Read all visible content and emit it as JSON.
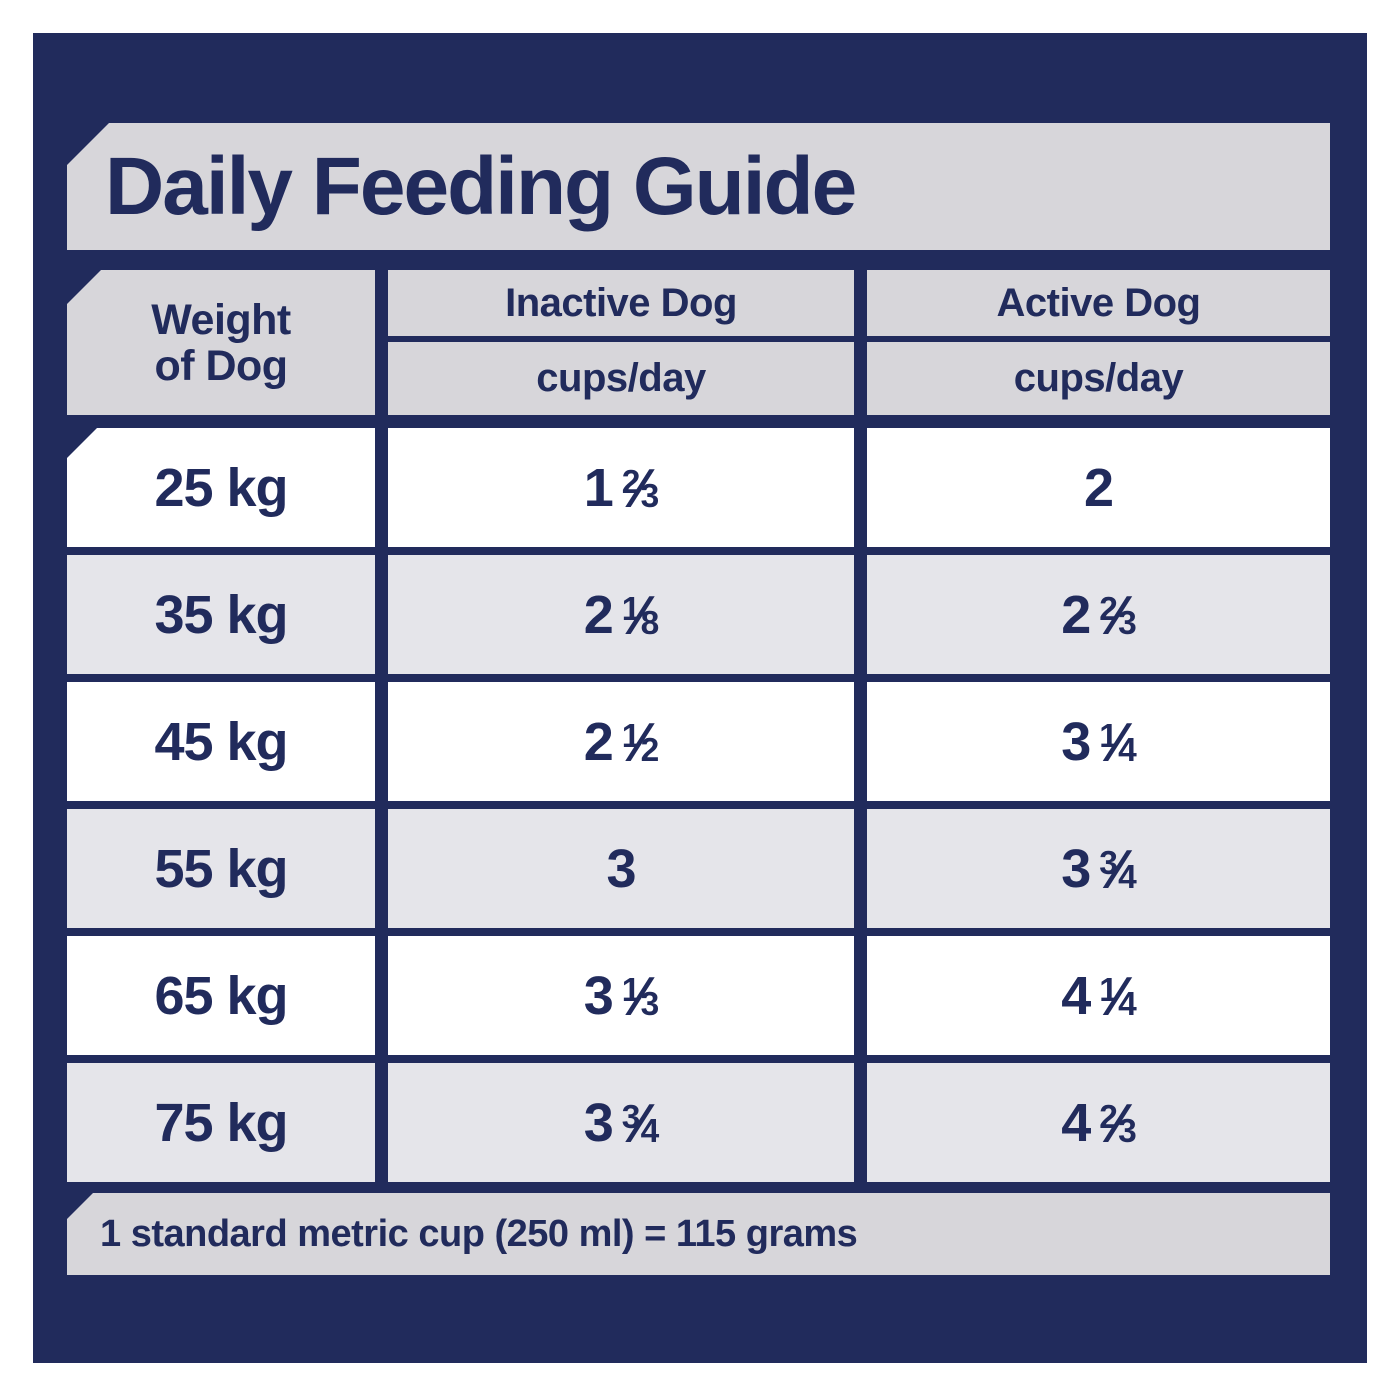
{
  "title": "Daily Feeding Guide",
  "colors": {
    "navy": "#212b5c",
    "band_gray": "#d7d6da",
    "row_gray": "#e5e5ea",
    "row_white": "#ffffff"
  },
  "table": {
    "columns": {
      "weight": {
        "line1": "Weight",
        "line2": "of Dog"
      },
      "inactive": {
        "label": "Inactive Dog",
        "unit": "cups/day"
      },
      "active": {
        "label": "Active Dog",
        "unit": "cups/day"
      }
    },
    "rows": [
      {
        "weight": "25 kg",
        "inactive_cups_per_day": "1 2/3",
        "active_cups_per_day": "2"
      },
      {
        "weight": "35 kg",
        "inactive_cups_per_day": "2 1/8",
        "active_cups_per_day": "2 2/3"
      },
      {
        "weight": "45 kg",
        "inactive_cups_per_day": "2 1/2",
        "active_cups_per_day": "3 1/4"
      },
      {
        "weight": "55 kg",
        "inactive_cups_per_day": "3",
        "active_cups_per_day": "3 3/4"
      },
      {
        "weight": "65 kg",
        "inactive_cups_per_day": "3 1/3",
        "active_cups_per_day": "4 1/4"
      },
      {
        "weight": "75 kg",
        "inactive_cups_per_day": "3 3/4",
        "active_cups_per_day": "4 2/3"
      }
    ]
  },
  "footer": {
    "note": "1 standard metric cup (250 ml) = 115 grams"
  }
}
